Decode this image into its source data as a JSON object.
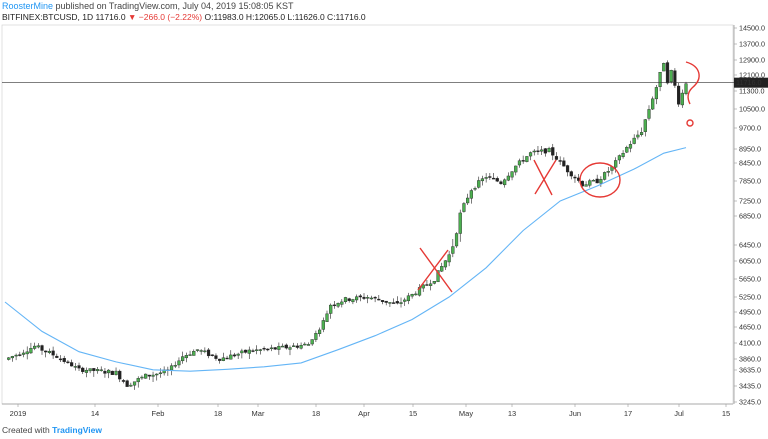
{
  "header": {
    "author": "RoosterMine",
    "published": "published on TradingView.com, July 04, 2019 15:08:05 KST",
    "symbol": "BITFINEX:BTCUSD, 1D",
    "last": "11716.0",
    "change": "▼ −266.0 (−2.22%)",
    "ohlc": "O:11983.0 H:12065.0 L:11626.0 C:11716.0"
  },
  "footer": {
    "prefix": "Created with",
    "brand": "TradingView"
  },
  "colors": {
    "up": "#4caf50",
    "down": "#222222",
    "ma": "#64b5f6",
    "annotation": "#e53935",
    "price_line": "#333333",
    "highlight": "#cddc39"
  },
  "chart_data": {
    "type": "candlestick",
    "symbol": "BITFINEX:BTCUSD",
    "timeframe": "1D",
    "y_ticks": [
      14500.0,
      13700.0,
      12900.0,
      12100.0,
      11300.0,
      10500.0,
      9700.0,
      8950.0,
      8450.0,
      7850.0,
      7250.0,
      6850.0,
      6450.0,
      6050.0,
      5650.0,
      5250.0,
      4950.0,
      4650.0,
      4100.0,
      3860.0,
      3635.0,
      3435.0,
      3245.0
    ],
    "y_tick_labels": [
      "14500.0",
      "13700.0",
      "12900.0",
      "12100.0",
      "11300.0",
      "10500.0",
      "9700.0",
      "8950.0",
      "8450.0",
      "7850.0",
      "7250.0",
      "6850.0",
      "6450.0",
      "6050.0",
      "5650.0",
      "5250.0",
      "4950.0",
      "4650.0",
      "4100.0",
      "3860.0",
      "3635.0",
      "3435.0",
      "3245.0"
    ],
    "x_tick_labels": [
      "2019",
      "14",
      "Feb",
      "18",
      "Mar",
      "18",
      "Apr",
      "15",
      "May",
      "13",
      "Jun",
      "17",
      "Jul",
      "15"
    ],
    "last_price": 11716.0,
    "last_price_label": "11716.0",
    "price_path": [
      [
        0,
        3850
      ],
      [
        8,
        4050
      ],
      [
        14,
        3900
      ],
      [
        20,
        3650
      ],
      [
        26,
        3620
      ],
      [
        30,
        3600
      ],
      [
        33,
        3450
      ],
      [
        38,
        3560
      ],
      [
        44,
        3620
      ],
      [
        48,
        3900
      ],
      [
        52,
        4000
      ],
      [
        58,
        3860
      ],
      [
        66,
        3980
      ],
      [
        74,
        4020
      ],
      [
        82,
        4080
      ],
      [
        88,
        5100
      ],
      [
        92,
        5200
      ],
      [
        98,
        5250
      ],
      [
        106,
        5100
      ],
      [
        110,
        5300
      ],
      [
        116,
        5650
      ],
      [
        120,
        6200
      ],
      [
        126,
        7600
      ],
      [
        130,
        8000
      ],
      [
        134,
        7800
      ],
      [
        138,
        8350
      ],
      [
        142,
        8800
      ],
      [
        147,
        8900
      ],
      [
        152,
        8200
      ],
      [
        156,
        7750
      ],
      [
        160,
        7850
      ],
      [
        164,
        8300
      ],
      [
        168,
        9000
      ],
      [
        172,
        9600
      ],
      [
        174,
        10500
      ],
      [
        176,
        11500
      ],
      [
        178,
        12800
      ],
      [
        179,
        11800
      ],
      [
        180,
        12300
      ],
      [
        182,
        10800
      ],
      [
        183,
        11200
      ],
      [
        184,
        11716
      ]
    ],
    "ma_path": [
      [
        0,
        5150
      ],
      [
        10,
        4500
      ],
      [
        20,
        3970
      ],
      [
        30,
        3800
      ],
      [
        40,
        3640
      ],
      [
        50,
        3620
      ],
      [
        60,
        3650
      ],
      [
        70,
        3700
      ],
      [
        80,
        3780
      ],
      [
        90,
        4000
      ],
      [
        100,
        4350
      ],
      [
        110,
        4800
      ],
      [
        120,
        5250
      ],
      [
        130,
        5900
      ],
      [
        140,
        6650
      ],
      [
        150,
        7250
      ],
      [
        160,
        7700
      ],
      [
        170,
        8250
      ],
      [
        178,
        8800
      ],
      [
        184,
        9000
      ]
    ],
    "annotations": [
      {
        "type": "cross",
        "near": "late April"
      },
      {
        "type": "cross",
        "near": "mid May"
      },
      {
        "type": "circle",
        "near": "early June"
      },
      {
        "type": "question-mark",
        "near": "early July"
      }
    ]
  }
}
